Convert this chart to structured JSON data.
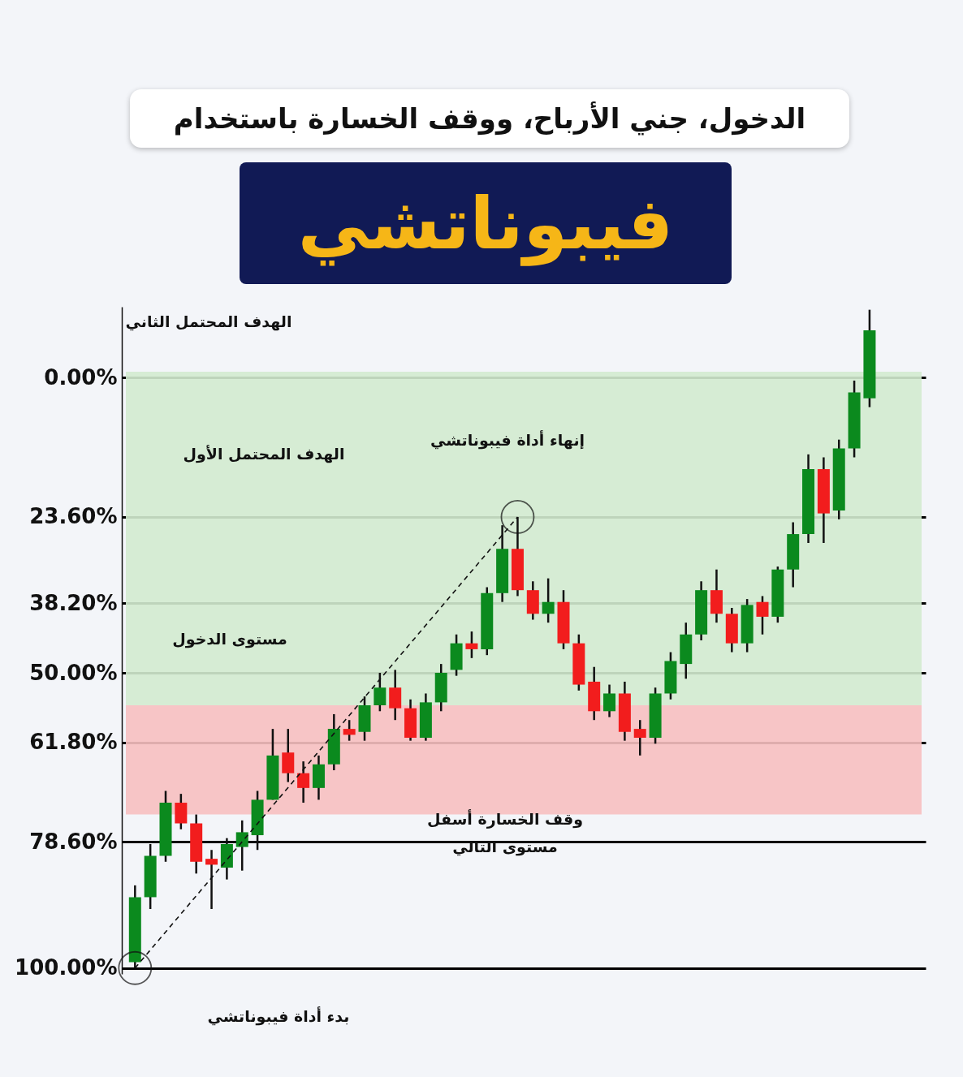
{
  "chart_data": {
    "type": "candlestick",
    "title": "الدخول، جني الأرباح، ووقف الخسارة باستخدام",
    "subtitle": "فيبوناتشي",
    "categories": [
      null,
      null,
      null,
      null,
      null,
      null,
      null,
      null,
      null,
      null,
      null,
      null,
      null,
      null,
      null,
      null,
      null,
      null,
      null,
      null,
      null,
      null,
      null,
      null,
      null,
      null,
      null,
      null,
      null,
      null,
      null,
      null,
      null,
      null,
      null,
      null,
      null,
      null,
      null,
      null,
      null,
      null,
      null,
      null,
      null,
      null,
      null,
      null,
      null
    ],
    "ohlc": [
      [
        99,
        100,
        86,
        88
      ],
      [
        88,
        90,
        79,
        81
      ],
      [
        81,
        82,
        70,
        72
      ],
      [
        72,
        76.5,
        70.5,
        75.5
      ],
      [
        75.5,
        84,
        74,
        82
      ],
      [
        81.5,
        90,
        80,
        82.5
      ],
      [
        83,
        85,
        78,
        79
      ],
      [
        79.5,
        83.5,
        75,
        77
      ],
      [
        77.5,
        80,
        70,
        71.5
      ],
      [
        71.5,
        71.5,
        59.5,
        64
      ],
      [
        63.5,
        68.5,
        59.5,
        67
      ],
      [
        67,
        72,
        65,
        69.5
      ],
      [
        69.5,
        71.5,
        64,
        65.5
      ],
      [
        65.5,
        66.5,
        57,
        59.5
      ],
      [
        59.5,
        61.5,
        58,
        60.5
      ],
      [
        60,
        61.5,
        54,
        55.5
      ],
      [
        55.5,
        56.5,
        50,
        52.5
      ],
      [
        52.5,
        58,
        49.5,
        56
      ],
      [
        56,
        61.5,
        54.5,
        61
      ],
      [
        61,
        61.5,
        53.5,
        55
      ],
      [
        55,
        56.5,
        48.5,
        50
      ],
      [
        49.5,
        50.5,
        43.5,
        45
      ],
      [
        45,
        47.5,
        43,
        46
      ],
      [
        46,
        47,
        35.5,
        36.5
      ],
      [
        36.5,
        38,
        25,
        29
      ],
      [
        29,
        37,
        23.6,
        36
      ],
      [
        36,
        41,
        34.5,
        40
      ],
      [
        40,
        41.5,
        34,
        38
      ],
      [
        38,
        46,
        36,
        45
      ],
      [
        45,
        53,
        43.5,
        52
      ],
      [
        51.5,
        58,
        49,
        56.5
      ],
      [
        56.5,
        57.5,
        52,
        53.5
      ],
      [
        53.5,
        61.5,
        51.5,
        60
      ],
      [
        59.5,
        64,
        58,
        61
      ],
      [
        61,
        62,
        52.5,
        53.5
      ],
      [
        53.5,
        54.5,
        46.5,
        48
      ],
      [
        48.5,
        51,
        41.5,
        43.5
      ],
      [
        43.5,
        44.5,
        34.5,
        36
      ],
      [
        36,
        41.5,
        32.5,
        40
      ],
      [
        40,
        46.5,
        39,
        45
      ],
      [
        45,
        46.5,
        37.5,
        38.5
      ],
      [
        38,
        43.5,
        37,
        40.5
      ],
      [
        40.5,
        41.5,
        32,
        32.5
      ],
      [
        32.5,
        35.5,
        24.5,
        26.5
      ],
      [
        26.5,
        28,
        13,
        15.5
      ],
      [
        15.5,
        28,
        13.5,
        23
      ],
      [
        22.5,
        24,
        10.5,
        12
      ],
      [
        12,
        13.5,
        0.5,
        2.5
      ],
      [
        3.5,
        5,
        -11.5,
        -8
      ]
    ],
    "colors": [
      "#0b8a1e",
      "#0b8a1e",
      "#0b8a1e",
      "#f21d1d",
      "#f21d1d",
      "#f21d1d",
      "#0b8a1e",
      "#0b8a1e",
      "#0b8a1e",
      "#0b8a1e",
      "#f21d1d",
      "#f21d1d",
      "#0b8a1e",
      "#0b8a1e",
      "#f21d1d",
      "#0b8a1e",
      "#0b8a1e",
      "#f21d1d",
      "#f21d1d",
      "#0b8a1e",
      "#0b8a1e",
      "#0b8a1e",
      "#f21d1d",
      "#0b8a1e",
      "#0b8a1e",
      "#f21d1d",
      "#f21d1d",
      "#0b8a1e",
      "#f21d1d",
      "#f21d1d",
      "#f21d1d",
      "#0b8a1e",
      "#f21d1d",
      "#f21d1d",
      "#0b8a1e",
      "#0b8a1e",
      "#0b8a1e",
      "#0b8a1e",
      "#f21d1d",
      "#f21d1d",
      "#0b8a1e",
      "#f21d1d",
      "#0b8a1e",
      "#0b8a1e",
      "#0b8a1e",
      "#f21d1d",
      "#0b8a1e",
      "#0b8a1e",
      "#0b8a1e"
    ],
    "series": [
      {
        "type": "line",
        "values": [
          100,
          null,
          null,
          null,
          null,
          null,
          null,
          null,
          null,
          null,
          null,
          null,
          null,
          null,
          null,
          null,
          null,
          null,
          null,
          null,
          null,
          null,
          null,
          null,
          null,
          23.6,
          null,
          null,
          null,
          null,
          null,
          null,
          null,
          null,
          null,
          null,
          null,
          null,
          null,
          null,
          null,
          null,
          null,
          null,
          null,
          null,
          null,
          null,
          null
        ],
        "color": "#111111",
        "line_style": "dashed",
        "marker": "circle"
      }
    ],
    "ylim": [
      101,
      -12
    ],
    "yticks": [
      {
        "value": 0,
        "label": "0.00%"
      },
      {
        "value": 23.6,
        "label": "23.60%"
      },
      {
        "value": 38.2,
        "label": "38.20%"
      },
      {
        "value": 50,
        "label": "50.00%"
      },
      {
        "value": 61.8,
        "label": "61.80%"
      },
      {
        "value": 78.6,
        "label": "78.60%"
      },
      {
        "value": 100,
        "label": "100.00%"
      }
    ],
    "grid": "y",
    "tick_labels": "y",
    "bands": [
      {
        "axis": "y",
        "from": -1,
        "to": 55.5,
        "color": "#d3ebcf"
      },
      {
        "axis": "y",
        "from": 55.5,
        "to": 74,
        "color": "#f7c0c0"
      }
    ],
    "annotations": [
      "الهدف المحتمل الثاني",
      "الهدف المحتمل الأول",
      "إنهاء أداة فيبوناتشي",
      "مستوى الدخول",
      "وقف الخسارة أسفل\nمستوى التالي",
      "بدء أداة فيبوناتشي"
    ]
  }
}
